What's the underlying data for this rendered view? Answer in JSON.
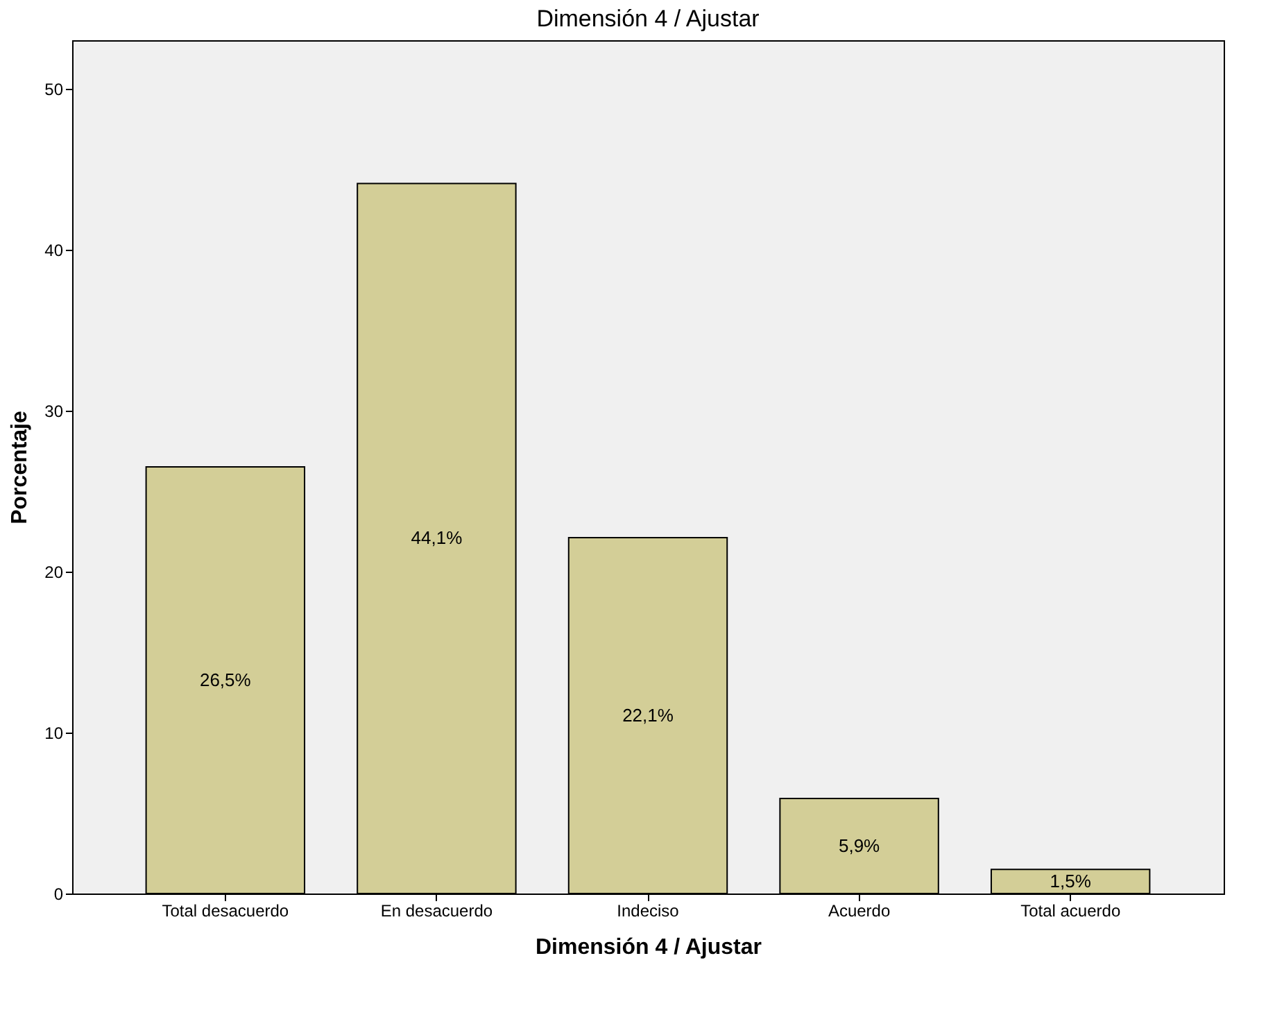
{
  "chart_data": {
    "type": "bar",
    "title": "Dimensión 4 / Ajustar",
    "xlabel": "Dimensión 4 / Ajustar",
    "ylabel": "Porcentaje",
    "categories": [
      "Total desacuerdo",
      "En desacuerdo",
      "Indeciso",
      "Acuerdo",
      "Total acuerdo"
    ],
    "values": [
      26.5,
      44.1,
      22.1,
      5.9,
      1.5
    ],
    "value_labels": [
      "26,5%",
      "44,1%",
      "22,1%",
      "5,9%",
      "1,5%"
    ],
    "color": "#d3ce97",
    "ylim": [
      0,
      53
    ],
    "yticks": [
      0,
      10,
      20,
      30,
      40,
      50
    ],
    "grid": false
  }
}
